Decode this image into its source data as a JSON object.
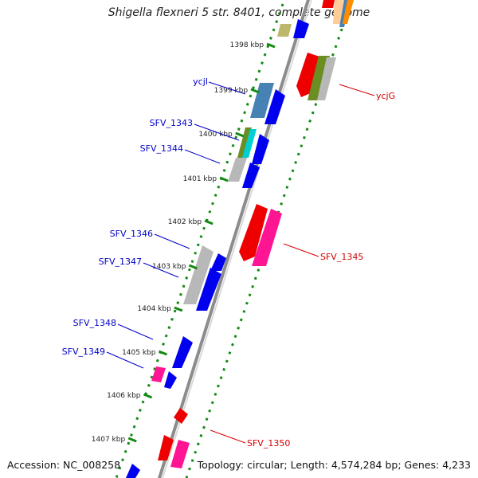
{
  "header": {
    "title": "Shigella flexneri 5 str. 8401, complete genome"
  },
  "footer": {
    "accession": "Accession: NC_008258",
    "topology": "Topology: circular; Length: 4,574,284 bp; Genes: 4,233"
  },
  "ticks": [
    "1398 kbp",
    "1399 kbp",
    "1400 kbp",
    "1401 kbp",
    "1402 kbp",
    "1403 kbp",
    "1404 kbp",
    "1405 kbp",
    "1406 kbp",
    "1407 kbp"
  ],
  "genes": {
    "reverse": [
      "ycjI",
      "SFV_1343",
      "SFV_1344",
      "SFV_1346",
      "SFV_1347",
      "SFV_1348",
      "SFV_1349"
    ],
    "forward": [
      "ycjG",
      "SFV_1345",
      "SFV_1350"
    ]
  },
  "colors": {
    "reverse_label": "#0000c8",
    "forward_label": "#d40000",
    "blue_cds": "#0000ee",
    "red_cds": "#ee0000",
    "pink_cds": "#ff1493",
    "grey_cds": "#b8b8b8",
    "steel_cds": "#4682b4",
    "olive_cds": "#6b8e23",
    "cyan_cds": "#00ced1",
    "khaki_cds": "#bdb76b",
    "tick_green": "#138a13",
    "backbone": "#8c8c8c"
  }
}
